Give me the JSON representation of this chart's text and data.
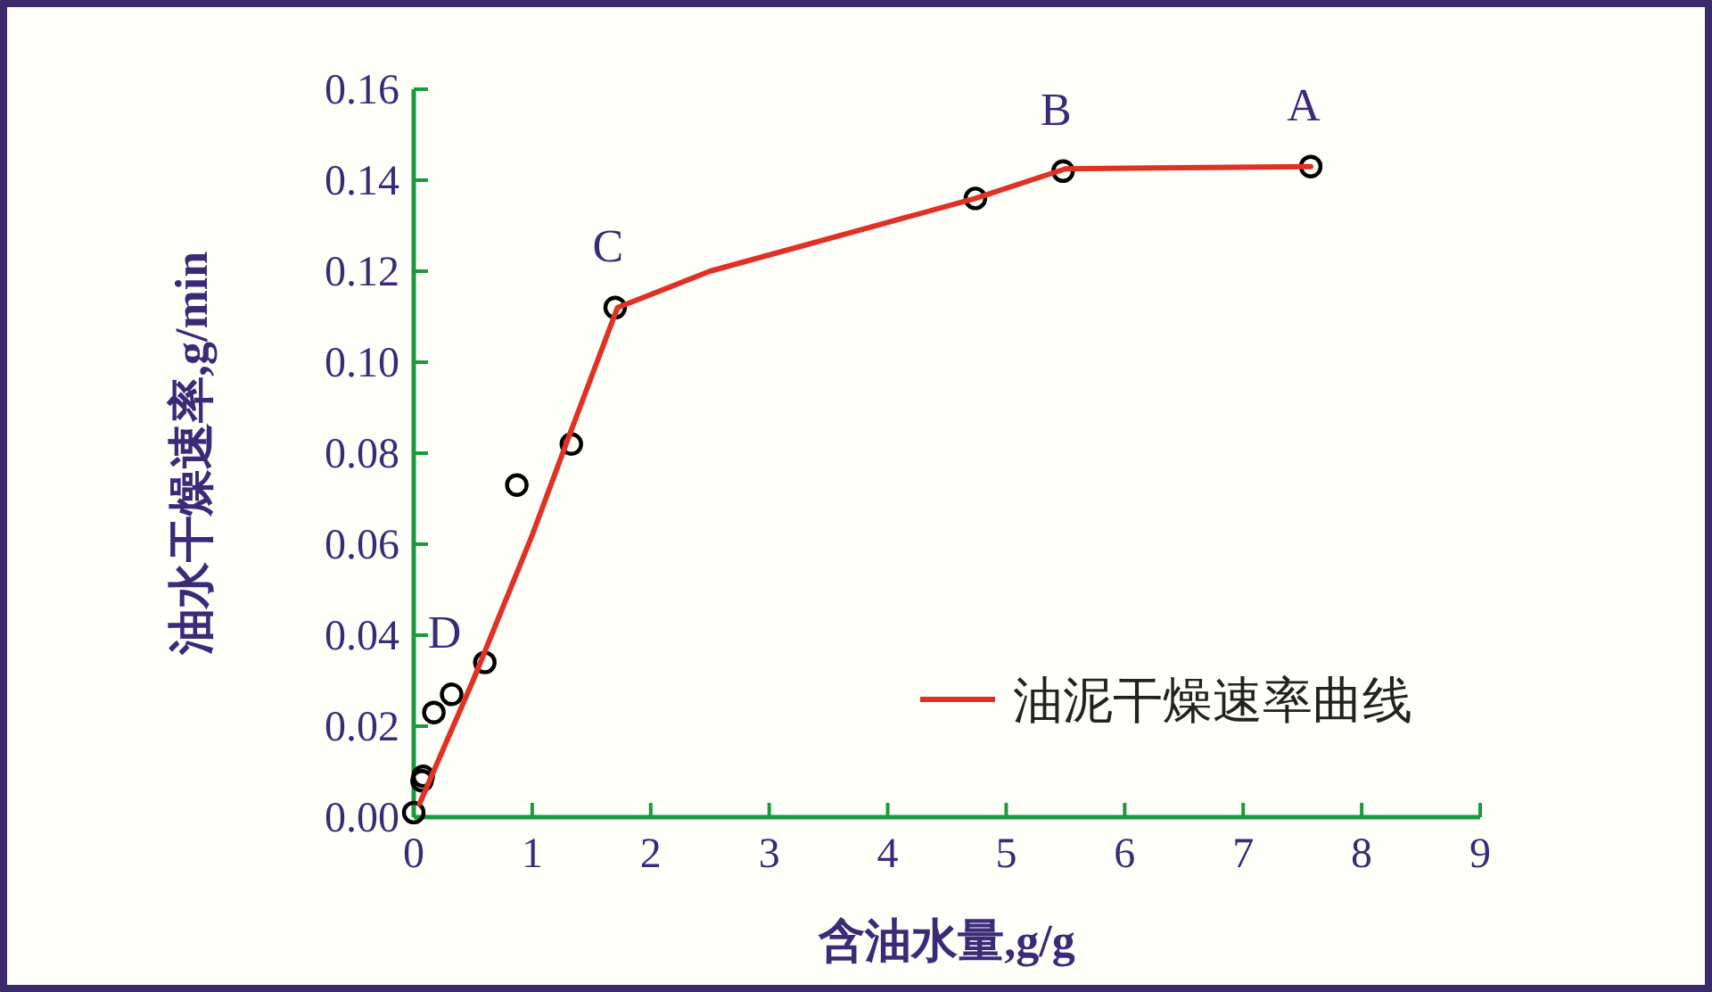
{
  "chart_data": {
    "type": "scatter",
    "xlabel": "含油水量,g/g",
    "ylabel": "油水干燥速率,g/min",
    "xlim": [
      0,
      9
    ],
    "xticks": [
      0,
      1,
      2,
      3,
      4,
      5,
      6,
      7,
      8,
      9
    ],
    "ylim": [
      0,
      0.16
    ],
    "yticks": [
      {
        "value": 0,
        "label": "0.00"
      },
      {
        "value": 0.02,
        "label": "0.02"
      },
      {
        "value": 0.04,
        "label": "0.04"
      },
      {
        "value": 0.06,
        "label": "0.06"
      },
      {
        "value": 0.08,
        "label": "0.08"
      },
      {
        "value": 0.1,
        "label": "0.10"
      },
      {
        "value": 0.12,
        "label": "0.12"
      },
      {
        "value": 0.14,
        "label": "0.14"
      },
      {
        "value": 0.16,
        "label": "0.16"
      }
    ],
    "grid": false,
    "legend": "bottom right",
    "marker": "circle",
    "series": [
      {
        "color": "#000000",
        "x": [
          0,
          0.07,
          0.08,
          0.17,
          0.32,
          0.6,
          0.87,
          1.33,
          1.7,
          4.74,
          5.48,
          7.57
        ],
        "values": [
          0.001,
          0.008,
          0.009,
          0.023,
          0.027,
          0.034,
          0.073,
          0.082,
          0.112,
          0.136,
          0.142,
          0.143
        ]
      },
      {
        "type": "line",
        "name": "油泥干燥速率曲线",
        "color": "#e03224",
        "marker": "none",
        "line_style": "solid",
        "x": [
          0.05,
          0.5,
          1.0,
          1.3,
          1.72,
          2.5,
          4.74,
          5.5,
          7.57
        ],
        "values": [
          0.003,
          0.03,
          0.062,
          0.083,
          0.112,
          0.12,
          0.136,
          0.1425,
          0.143
        ]
      }
    ],
    "annotations": [
      {
        "text": "A",
        "x": 7.57,
        "y": 0.143
      },
      {
        "text": "B",
        "x": 5.48,
        "y": 0.142
      },
      {
        "text": "C",
        "x": 1.7,
        "y": 0.112
      },
      {
        "text": "D",
        "x": 0.32,
        "y": 0.027
      }
    ]
  }
}
